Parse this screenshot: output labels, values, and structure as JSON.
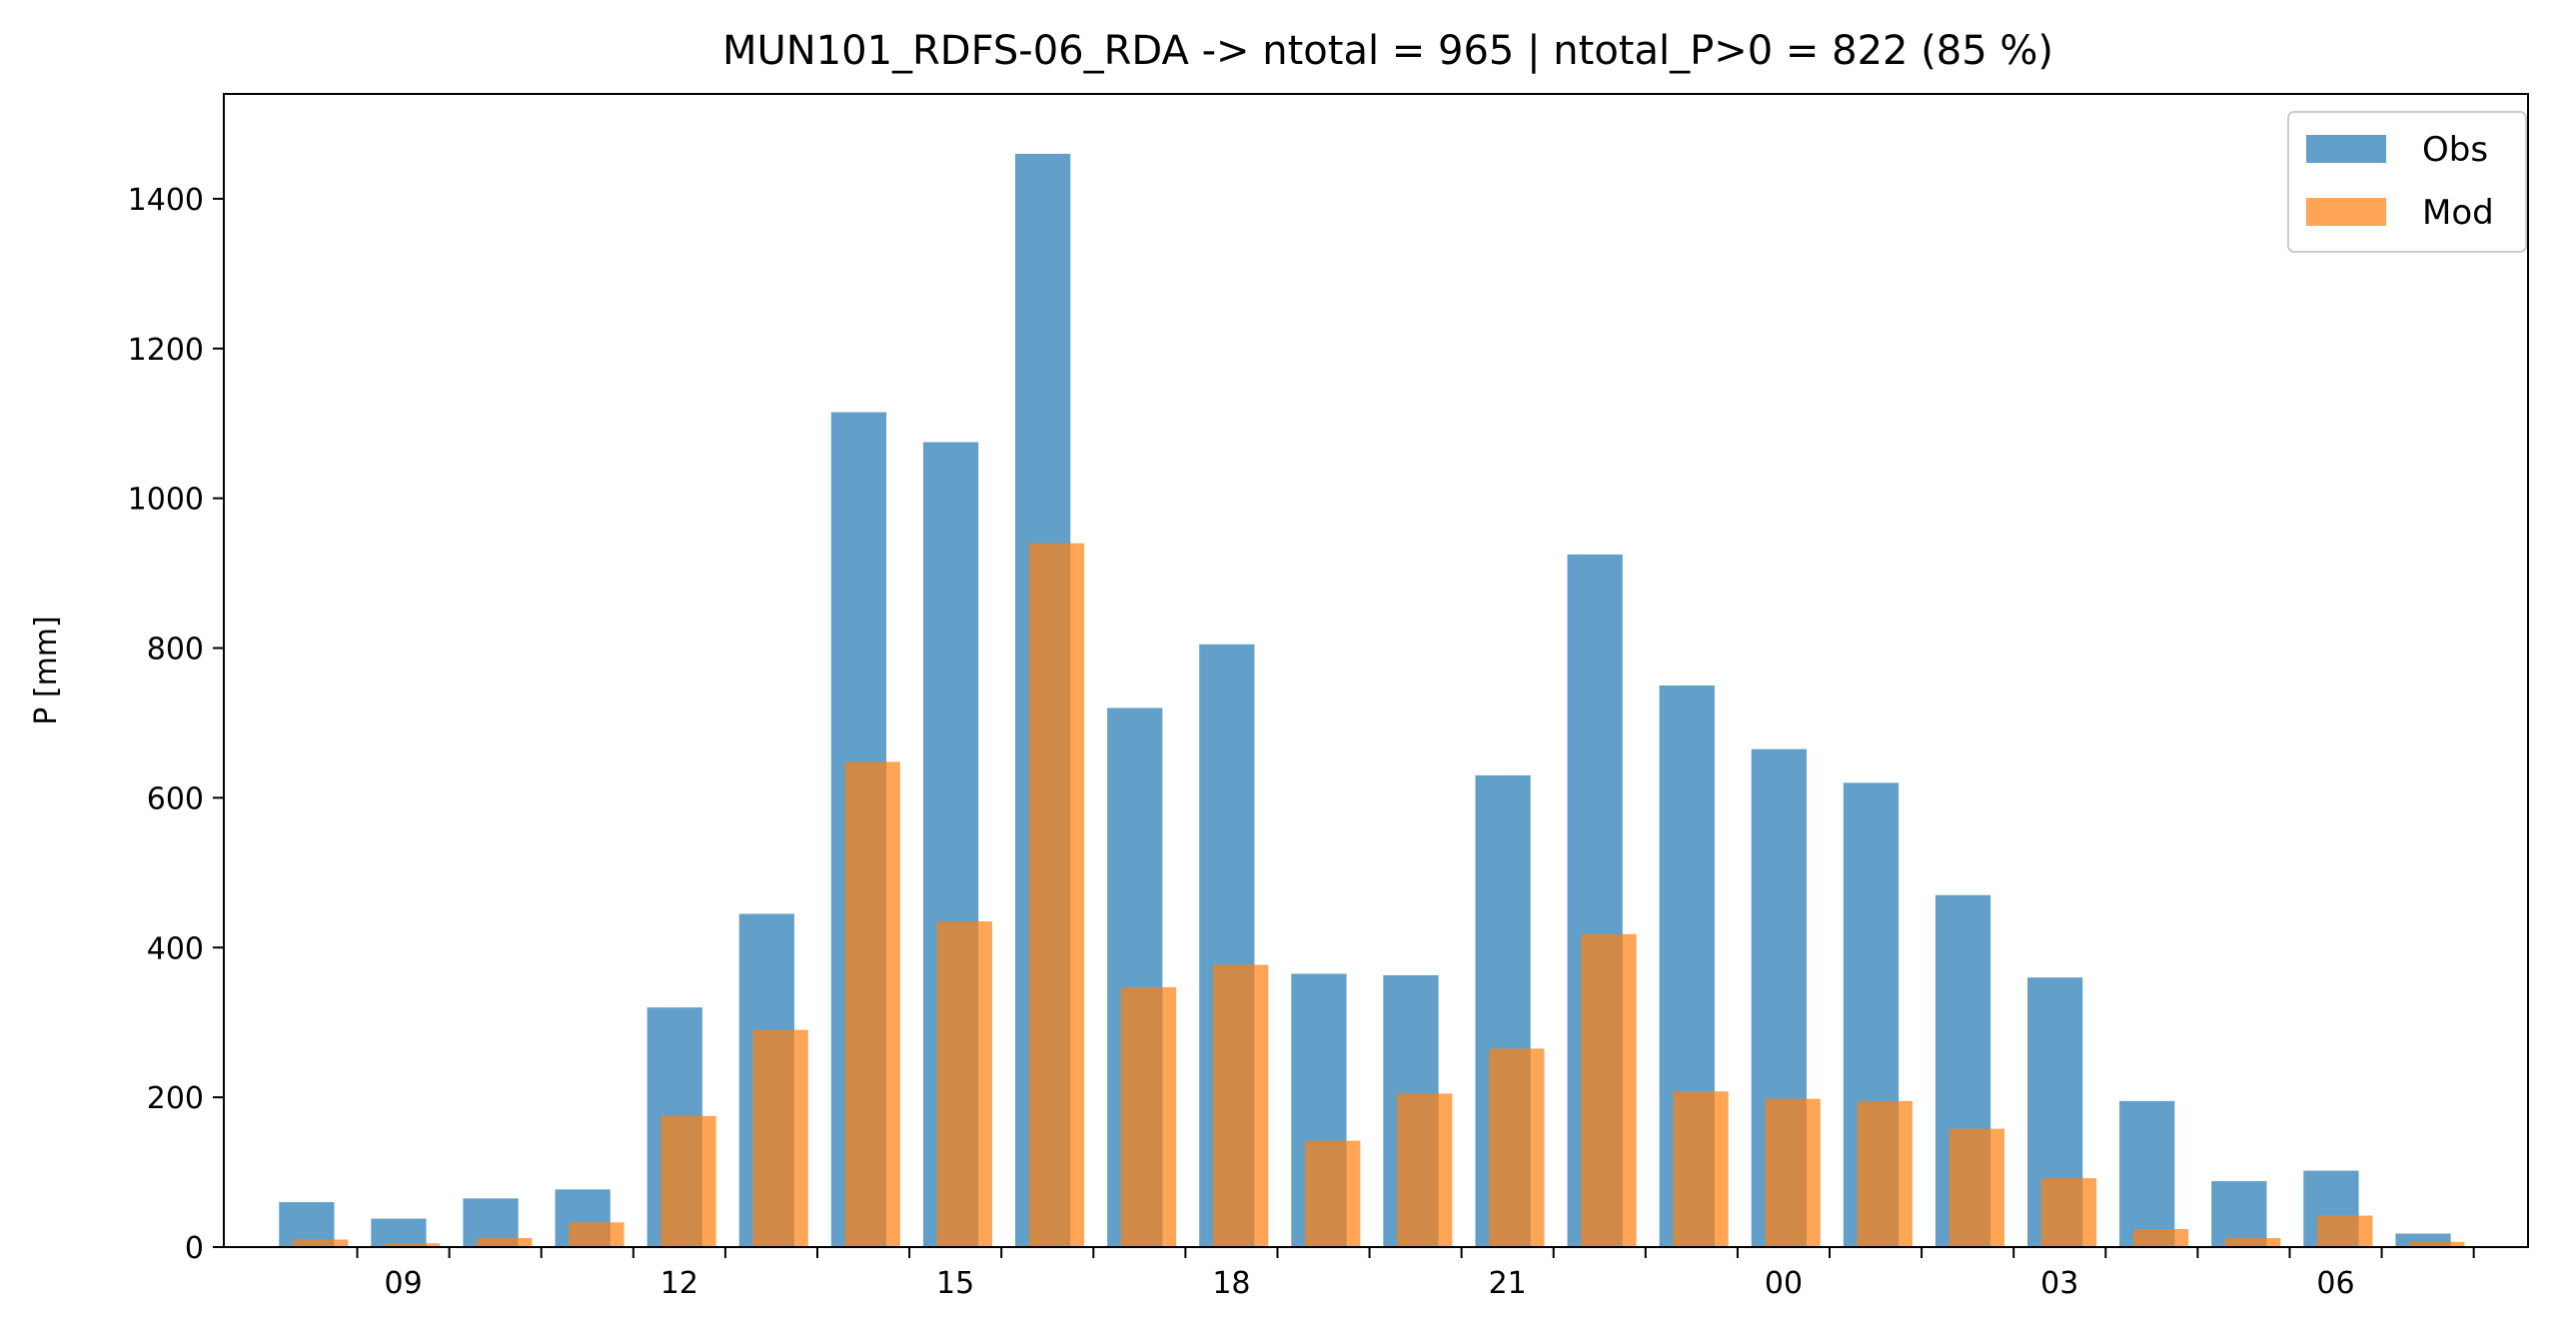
{
  "chart_data": {
    "type": "bar",
    "title": "MUN101_RDFS-06_RDA -> ntotal = 965 | ntotal_P>0 = 822 (85 %)",
    "xlabel": "",
    "ylabel": "P [mm]",
    "ylim": [
      0,
      1540
    ],
    "yticks": [
      0,
      200,
      400,
      600,
      800,
      1000,
      1200,
      1400
    ],
    "grid": false,
    "legend_position": "top-right",
    "hours": [
      8,
      9,
      10,
      11,
      12,
      13,
      14,
      15,
      16,
      17,
      18,
      19,
      20,
      21,
      22,
      23,
      0,
      1,
      2,
      3,
      4,
      5,
      6,
      7
    ],
    "x_tick_labels": [
      {
        "hour_index": 1,
        "label": "09"
      },
      {
        "hour_index": 4,
        "label": "12"
      },
      {
        "hour_index": 7,
        "label": "15"
      },
      {
        "hour_index": 10,
        "label": "18"
      },
      {
        "hour_index": 13,
        "label": "21"
      },
      {
        "hour_index": 16,
        "label": "00"
      },
      {
        "hour_index": 19,
        "label": "03"
      },
      {
        "hour_index": 22,
        "label": "06"
      }
    ],
    "series": [
      {
        "name": "Obs",
        "color": "#1f77b4",
        "values": [
          60,
          38,
          65,
          77,
          320,
          445,
          1115,
          1075,
          1460,
          720,
          805,
          365,
          363,
          630,
          925,
          750,
          665,
          620,
          470,
          360,
          195,
          88,
          102,
          18
        ]
      },
      {
        "name": "Mod",
        "color": "#ff7f0e",
        "values": [
          10,
          5,
          12,
          33,
          175,
          290,
          648,
          435,
          940,
          347,
          377,
          142,
          205,
          265,
          418,
          208,
          198,
          195,
          158,
          92,
          24,
          12,
          42,
          7
        ]
      }
    ]
  }
}
